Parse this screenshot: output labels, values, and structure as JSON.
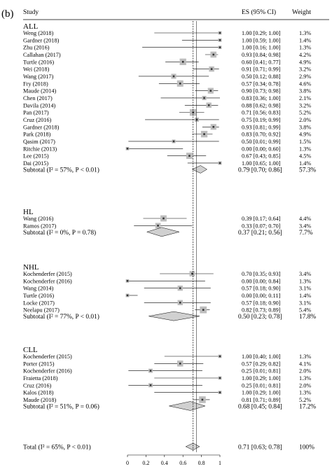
{
  "panel_label": "(b)",
  "header": {
    "study": "Study",
    "es": "ES (95% CI)",
    "weight": "Weight"
  },
  "chart_data": {
    "type": "forest",
    "xlim": [
      0,
      1
    ],
    "xticks": [
      "0",
      "0.2",
      "0.4",
      "0.6",
      "0.8",
      "1"
    ],
    "tick_values": [
      0,
      0.2,
      0.4,
      0.6,
      0.8,
      1
    ],
    "overall_line": 0.71,
    "groups": [
      {
        "name": "ALL",
        "studies": [
          {
            "label": "Weng (2018)",
            "es": 1.0,
            "lo": 0.29,
            "hi": 1.0,
            "es_text": "1.00 [0.29; 1.00]",
            "weight": "1.3%"
          },
          {
            "label": "Gardner (2018)",
            "es": 1.0,
            "lo": 0.59,
            "hi": 1.0,
            "es_text": "1.00 [0.59; 1.00]",
            "weight": "1.4%"
          },
          {
            "label": "Zhu (2016)",
            "es": 1.0,
            "lo": 0.16,
            "hi": 1.0,
            "es_text": "1.00 [0.16; 1.00]",
            "weight": "1.3%"
          },
          {
            "label": "Callahan (2017)",
            "es": 0.93,
            "lo": 0.84,
            "hi": 0.98,
            "es_text": "0.93 [0.84; 0.98]",
            "weight": "4.2%"
          },
          {
            "label": "Turtle (2016)",
            "es": 0.6,
            "lo": 0.41,
            "hi": 0.77,
            "es_text": "0.60 [0.41; 0.77]",
            "weight": "4.9%"
          },
          {
            "label": "Wei (2018)",
            "es": 0.91,
            "lo": 0.71,
            "hi": 0.99,
            "es_text": "0.91 [0.71; 0.99]",
            "weight": "3.2%"
          },
          {
            "label": "Wang (2017)",
            "es": 0.5,
            "lo": 0.12,
            "hi": 0.88,
            "es_text": "0.50 [0.12; 0.88]",
            "weight": "2.9%"
          },
          {
            "label": "Fry (2018)",
            "es": 0.57,
            "lo": 0.34,
            "hi": 0.78,
            "es_text": "0.57 [0.34; 0.78]",
            "weight": "4.6%"
          },
          {
            "label": "Maude (2014)",
            "es": 0.9,
            "lo": 0.73,
            "hi": 0.98,
            "es_text": "0.90 [0.73; 0.98]",
            "weight": "3.8%"
          },
          {
            "label": "Chen (2017)",
            "es": 0.83,
            "lo": 0.36,
            "hi": 1.0,
            "es_text": "0.83 [0.36; 1.00]",
            "weight": "2.1%"
          },
          {
            "label": "Davila (2014)",
            "es": 0.88,
            "lo": 0.62,
            "hi": 0.98,
            "es_text": "0.88 [0.62; 0.98]",
            "weight": "3.2%"
          },
          {
            "label": "Pan (2017)",
            "es": 0.71,
            "lo": 0.56,
            "hi": 0.83,
            "es_text": "0.71 [0.56; 0.83]",
            "weight": "5.2%"
          },
          {
            "label": "Cruz (2016)",
            "es": 0.75,
            "lo": 0.19,
            "hi": 0.99,
            "es_text": "0.75 [0.19; 0.99]",
            "weight": "2.0%"
          },
          {
            "label": "Gardner (2018)",
            "es": 0.93,
            "lo": 0.81,
            "hi": 0.99,
            "es_text": "0.93 [0.81; 0.99]",
            "weight": "3.8%"
          },
          {
            "label": "Park (2018)",
            "es": 0.83,
            "lo": 0.7,
            "hi": 0.92,
            "es_text": "0.83 [0.70; 0.92]",
            "weight": "4.9%"
          },
          {
            "label": "Qasim (2017)",
            "es": 0.5,
            "lo": 0.01,
            "hi": 0.99,
            "es_text": "0.50 [0.01; 0.99]",
            "weight": "1.5%"
          },
          {
            "label": "Ritchie (2013)",
            "es": 0.0,
            "lo": 0.0,
            "hi": 0.6,
            "es_text": "0.00 [0.00; 0.60]",
            "weight": "1.3%"
          },
          {
            "label": "Lee (2015)",
            "es": 0.67,
            "lo": 0.43,
            "hi": 0.85,
            "es_text": "0.67 [0.43; 0.85]",
            "weight": "4.5%"
          },
          {
            "label": "Dai (2015)",
            "es": 1.0,
            "lo": 0.65,
            "hi": 1.0,
            "es_text": "1.00 [0.65; 1.00]",
            "weight": "1.4%"
          }
        ],
        "subtotal": {
          "label": "Subtotal (I² = 57%, P < 0.01)",
          "es": 0.79,
          "lo": 0.7,
          "hi": 0.86,
          "es_text": "0.79 [0.70; 0.86]",
          "weight": "57.3%"
        }
      },
      {
        "name": "HL",
        "studies": [
          {
            "label": "Wang (2016)",
            "es": 0.39,
            "lo": 0.17,
            "hi": 0.64,
            "es_text": "0.39 [0.17; 0.64]",
            "weight": "4.4%"
          },
          {
            "label": "Ramos (2017)",
            "es": 0.33,
            "lo": 0.07,
            "hi": 0.7,
            "es_text": "0.33 [0.07; 0.70]",
            "weight": "3.4%"
          }
        ],
        "subtotal": {
          "label": "Subtotal (I² = 0%, P = 0.78)",
          "es": 0.37,
          "lo": 0.21,
          "hi": 0.56,
          "es_text": "0.37 [0.21; 0.56]",
          "weight": "7.7%"
        }
      },
      {
        "name": "NHL",
        "studies": [
          {
            "label": "Kochenderfer (2015)",
            "es": 0.7,
            "lo": 0.35,
            "hi": 0.93,
            "es_text": "0.70 [0.35; 0.93]",
            "weight": "3.4%"
          },
          {
            "label": "Kochenderfer (2016)",
            "es": 0.0,
            "lo": 0.0,
            "hi": 0.84,
            "es_text": "0.00 [0.00; 0.84]",
            "weight": "1.3%"
          },
          {
            "label": "Wang (2014)",
            "es": 0.57,
            "lo": 0.18,
            "hi": 0.9,
            "es_text": "0.57 [0.18; 0.90]",
            "weight": "3.1%"
          },
          {
            "label": "Turtle (2016)",
            "es": 0.0,
            "lo": 0.0,
            "hi": 0.11,
            "es_text": "0.00 [0.00; 0.11]",
            "weight": "1.4%"
          },
          {
            "label": "Locke (2017)",
            "es": 0.57,
            "lo": 0.18,
            "hi": 0.9,
            "es_text": "0.57 [0.18; 0.90]",
            "weight": "3.1%"
          },
          {
            "label": "Neelapu (2017)",
            "es": 0.82,
            "lo": 0.73,
            "hi": 0.89,
            "es_text": "0.82 [0.73; 0.89]",
            "weight": "5.4%"
          }
        ],
        "subtotal": {
          "label": "Subtotal (I² = 77%, P < 0.01)",
          "es": 0.5,
          "lo": 0.23,
          "hi": 0.78,
          "es_text": "0.50 [0.23; 0.78]",
          "weight": "17.8%"
        }
      },
      {
        "name": "CLL",
        "studies": [
          {
            "label": "Kochenderfer (2015)",
            "es": 1.0,
            "lo": 0.4,
            "hi": 1.0,
            "es_text": "1.00 [0.40; 1.00]",
            "weight": "1.3%"
          },
          {
            "label": "Porter (2015)",
            "es": 0.57,
            "lo": 0.29,
            "hi": 0.82,
            "es_text": "0.57 [0.29; 0.82]",
            "weight": "4.1%"
          },
          {
            "label": "Kochenderfer (2016)",
            "es": 0.25,
            "lo": 0.01,
            "hi": 0.81,
            "es_text": "0.25 [0.01; 0.81]",
            "weight": "2.0%"
          },
          {
            "label": "Fraietta (2018)",
            "es": 1.0,
            "lo": 0.29,
            "hi": 1.0,
            "es_text": "1.00 [0.29; 1.00]",
            "weight": "1.3%"
          },
          {
            "label": "Cruz (2016)",
            "es": 0.25,
            "lo": 0.01,
            "hi": 0.81,
            "es_text": "0.25 [0.01; 0.81]",
            "weight": "2.0%"
          },
          {
            "label": "Kalos (2018)",
            "es": 1.0,
            "lo": 0.29,
            "hi": 1.0,
            "es_text": "1.00 [0.29; 1.00]",
            "weight": "1.3%"
          },
          {
            "label": "Maude (2018)",
            "es": 0.81,
            "lo": 0.71,
            "hi": 0.89,
            "es_text": "0.81 [0.71; 0.89]",
            "weight": "5.2%"
          }
        ],
        "subtotal": {
          "label": "Subtotal (I² = 51%, P = 0.06)",
          "es": 0.68,
          "lo": 0.45,
          "hi": 0.84,
          "es_text": "0.68 [0.45; 0.84]",
          "weight": "17.2%"
        }
      }
    ],
    "total": {
      "label": "Total (I² = 65%, P < 0.01)",
      "es": 0.71,
      "lo": 0.63,
      "hi": 0.78,
      "es_text": "0.71 [0.63; 0.78]",
      "weight": "100%"
    }
  }
}
